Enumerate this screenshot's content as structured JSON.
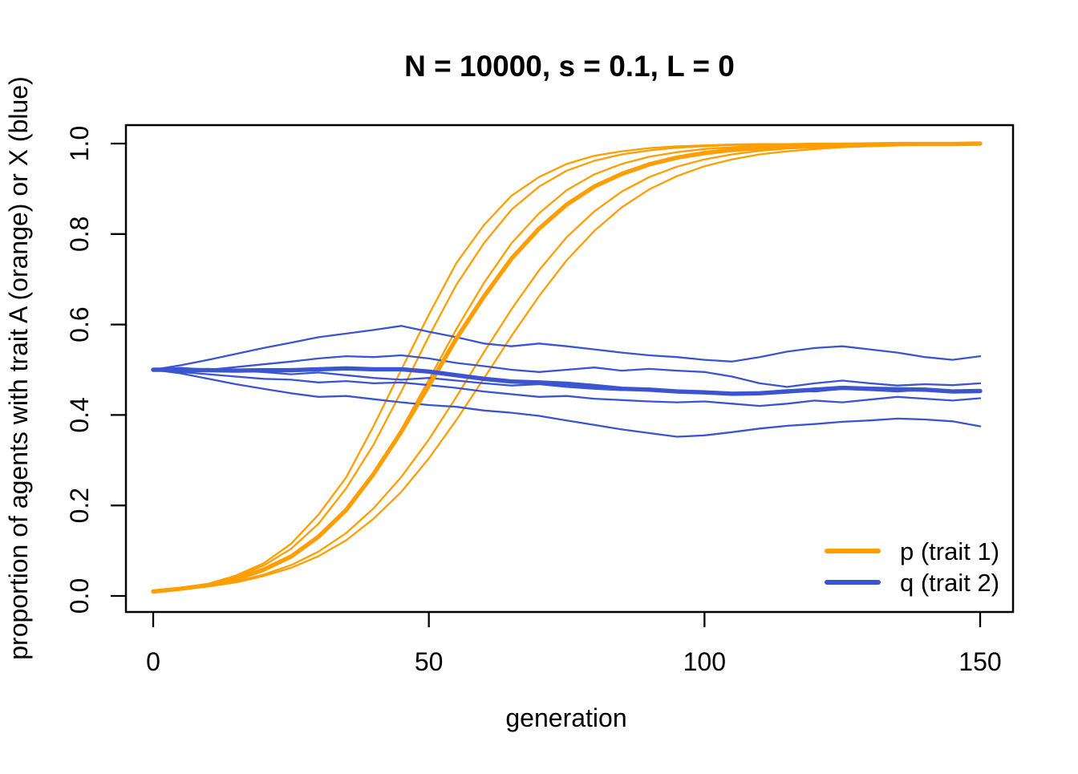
{
  "chart_data": {
    "type": "line",
    "title": "N = 10000, s = 0.1, L = 0",
    "xlabel": "generation",
    "ylabel": "proportion of agents with trait A (orange) or X (blue)",
    "xlim": [
      0,
      150
    ],
    "ylim": [
      0.0,
      1.0
    ],
    "grid": false,
    "x_ticks": [
      0,
      50,
      100,
      150
    ],
    "x_tick_labels": [
      "0",
      "50",
      "100",
      "150"
    ],
    "y_ticks": [
      0.0,
      0.2,
      0.4,
      0.6,
      0.8,
      1.0
    ],
    "y_tick_labels": [
      "0.0",
      "0.2",
      "0.4",
      "0.6",
      "0.8",
      "1.0"
    ],
    "colors": {
      "orange": "#FF9E00",
      "blue": "#3B55D1"
    },
    "legend": {
      "position": "bottom-right",
      "entries": [
        {
          "label": "p (trait 1)",
          "color": "#FF9E00"
        },
        {
          "label": "q (trait 2)",
          "color": "#3B55D1"
        }
      ]
    },
    "x_sample": [
      0,
      5,
      10,
      15,
      20,
      25,
      30,
      35,
      40,
      45,
      50,
      55,
      60,
      65,
      70,
      75,
      80,
      85,
      90,
      95,
      100,
      105,
      110,
      115,
      120,
      125,
      130,
      135,
      140,
      145,
      150
    ],
    "series": [
      {
        "name": "p run 1",
        "color": "#FF9E00",
        "width": "thin",
        "values": [
          0.01,
          0.017,
          0.027,
          0.045,
          0.072,
          0.115,
          0.18,
          0.262,
          0.376,
          0.5,
          0.622,
          0.736,
          0.82,
          0.885,
          0.926,
          0.955,
          0.973,
          0.983,
          0.99,
          0.994,
          0.996,
          0.998,
          0.999,
          0.999,
          1.0,
          1.0,
          1.0,
          1.0,
          1.0,
          1.0,
          1.0
        ]
      },
      {
        "name": "p run 2",
        "color": "#FF9E00",
        "width": "thin",
        "values": [
          0.01,
          0.016,
          0.026,
          0.042,
          0.067,
          0.104,
          0.16,
          0.238,
          0.335,
          0.452,
          0.574,
          0.688,
          0.78,
          0.854,
          0.905,
          0.94,
          0.962,
          0.976,
          0.985,
          0.991,
          0.994,
          0.997,
          0.998,
          0.999,
          0.999,
          1.0,
          1.0,
          1.0,
          1.0,
          1.0,
          1.0
        ]
      },
      {
        "name": "p run 3",
        "color": "#FF9E00",
        "width": "thin",
        "values": [
          0.01,
          0.016,
          0.024,
          0.038,
          0.058,
          0.088,
          0.131,
          0.19,
          0.272,
          0.368,
          0.478,
          0.59,
          0.692,
          0.78,
          0.846,
          0.897,
          0.932,
          0.955,
          0.971,
          0.981,
          0.988,
          0.992,
          0.995,
          0.997,
          0.998,
          0.999,
          0.999,
          1.0,
          1.0,
          1.0,
          1.0
        ]
      },
      {
        "name": "p run 4",
        "color": "#FF9E00",
        "width": "thin",
        "values": [
          0.01,
          0.015,
          0.022,
          0.032,
          0.047,
          0.068,
          0.098,
          0.139,
          0.194,
          0.263,
          0.346,
          0.44,
          0.539,
          0.634,
          0.72,
          0.793,
          0.85,
          0.894,
          0.926,
          0.949,
          0.965,
          0.976,
          0.984,
          0.989,
          0.992,
          0.995,
          0.996,
          0.998,
          0.998,
          0.999,
          0.999
        ]
      },
      {
        "name": "p run 5",
        "color": "#FF9E00",
        "width": "thin",
        "values": [
          0.01,
          0.015,
          0.021,
          0.03,
          0.044,
          0.062,
          0.088,
          0.123,
          0.171,
          0.23,
          0.304,
          0.389,
          0.481,
          0.575,
          0.663,
          0.742,
          0.807,
          0.859,
          0.899,
          0.928,
          0.95,
          0.965,
          0.976,
          0.983,
          0.988,
          0.992,
          0.994,
          0.996,
          0.997,
          0.998,
          0.999
        ]
      },
      {
        "name": "q run 1",
        "color": "#3B55D1",
        "width": "thin",
        "values": [
          0.5,
          0.51,
          0.522,
          0.535,
          0.548,
          0.56,
          0.572,
          0.58,
          0.588,
          0.597,
          0.584,
          0.572,
          0.558,
          0.552,
          0.558,
          0.552,
          0.545,
          0.538,
          0.532,
          0.528,
          0.522,
          0.518,
          0.528,
          0.54,
          0.548,
          0.552,
          0.545,
          0.538,
          0.528,
          0.522,
          0.53
        ]
      },
      {
        "name": "q run 2",
        "color": "#3B55D1",
        "width": "thin",
        "values": [
          0.5,
          0.504,
          0.5,
          0.506,
          0.512,
          0.518,
          0.525,
          0.53,
          0.528,
          0.532,
          0.525,
          0.515,
          0.508,
          0.5,
          0.495,
          0.5,
          0.505,
          0.498,
          0.502,
          0.498,
          0.495,
          0.485,
          0.47,
          0.462,
          0.47,
          0.476,
          0.47,
          0.465,
          0.468,
          0.466,
          0.47
        ]
      },
      {
        "name": "q run 3",
        "color": "#3B55D1",
        "width": "thin",
        "values": [
          0.5,
          0.498,
          0.502,
          0.498,
          0.495,
          0.49,
          0.494,
          0.488,
          0.482,
          0.478,
          0.482,
          0.476,
          0.47,
          0.465,
          0.468,
          0.462,
          0.458,
          0.455,
          0.458,
          0.452,
          0.45,
          0.446,
          0.45,
          0.455,
          0.452,
          0.458,
          0.455,
          0.452,
          0.456,
          0.452,
          0.455
        ]
      },
      {
        "name": "q run 4",
        "color": "#3B55D1",
        "width": "thin",
        "values": [
          0.5,
          0.495,
          0.49,
          0.485,
          0.48,
          0.478,
          0.472,
          0.475,
          0.47,
          0.472,
          0.466,
          0.46,
          0.452,
          0.446,
          0.44,
          0.442,
          0.436,
          0.433,
          0.43,
          0.428,
          0.43,
          0.425,
          0.42,
          0.425,
          0.432,
          0.428,
          0.434,
          0.44,
          0.436,
          0.432,
          0.437
        ]
      },
      {
        "name": "q run 5",
        "color": "#3B55D1",
        "width": "thin",
        "values": [
          0.5,
          0.492,
          0.48,
          0.468,
          0.458,
          0.448,
          0.44,
          0.442,
          0.435,
          0.428,
          0.422,
          0.418,
          0.41,
          0.405,
          0.398,
          0.388,
          0.378,
          0.368,
          0.36,
          0.352,
          0.355,
          0.362,
          0.37,
          0.376,
          0.38,
          0.385,
          0.388,
          0.392,
          0.39,
          0.386,
          0.375
        ]
      },
      {
        "name": "p mean",
        "color": "#FF9E00",
        "width": "thick",
        "values": [
          0.01,
          0.016,
          0.024,
          0.037,
          0.058,
          0.087,
          0.131,
          0.19,
          0.27,
          0.363,
          0.465,
          0.569,
          0.662,
          0.746,
          0.812,
          0.865,
          0.905,
          0.933,
          0.954,
          0.969,
          0.979,
          0.986,
          0.99,
          0.993,
          0.995,
          0.997,
          0.998,
          0.999,
          0.999,
          0.999,
          1.0
        ]
      },
      {
        "name": "q mean",
        "color": "#3B55D1",
        "width": "thick",
        "values": [
          0.5,
          0.5,
          0.499,
          0.498,
          0.499,
          0.499,
          0.501,
          0.503,
          0.501,
          0.501,
          0.496,
          0.488,
          0.48,
          0.474,
          0.472,
          0.469,
          0.464,
          0.458,
          0.456,
          0.452,
          0.45,
          0.447,
          0.448,
          0.452,
          0.456,
          0.46,
          0.458,
          0.457,
          0.456,
          0.452,
          0.453
        ]
      }
    ]
  }
}
